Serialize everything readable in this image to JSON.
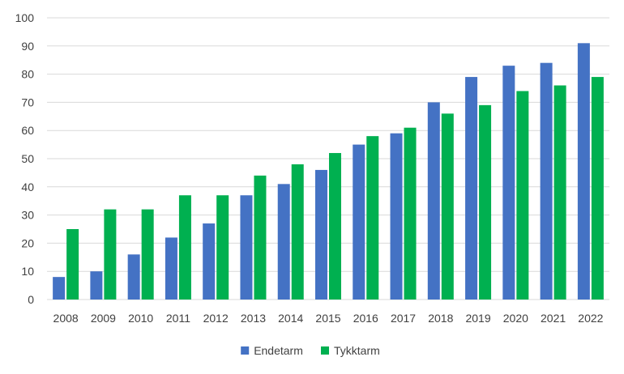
{
  "chart_data": {
    "type": "bar",
    "categories": [
      "2008",
      "2009",
      "2010",
      "2011",
      "2012",
      "2013",
      "2014",
      "2015",
      "2016",
      "2017",
      "2018",
      "2019",
      "2020",
      "2021",
      "2022"
    ],
    "series": [
      {
        "name": "Endetarm",
        "color": "#4472c4",
        "values": [
          8,
          10,
          16,
          22,
          27,
          37,
          41,
          46,
          55,
          59,
          70,
          79,
          83,
          84,
          91
        ]
      },
      {
        "name": "Tykktarm",
        "color": "#00b050",
        "values": [
          25,
          32,
          32,
          37,
          37,
          44,
          48,
          52,
          58,
          61,
          66,
          69,
          74,
          76,
          79
        ]
      }
    ],
    "ylim": [
      0,
      100
    ],
    "yticks": [
      0,
      10,
      20,
      30,
      40,
      50,
      60,
      70,
      80,
      90,
      100
    ],
    "grid": true,
    "legend_position": "bottom"
  }
}
